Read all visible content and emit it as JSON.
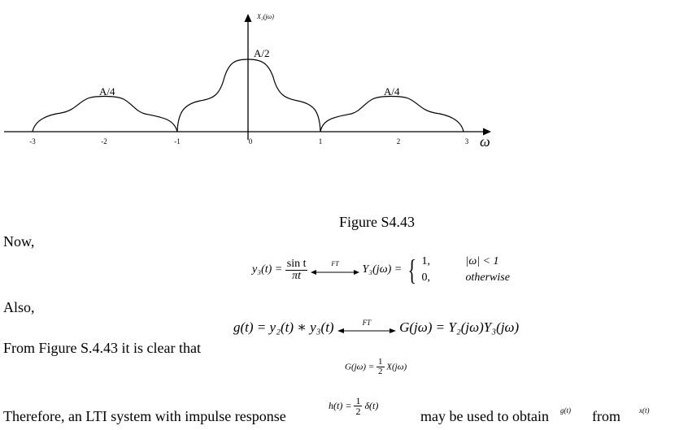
{
  "figure": {
    "y_axis_label": "X₂(jω)",
    "x_axis_symbol": "ω",
    "x_ticks": [
      "-3",
      "-2",
      "-1",
      "0",
      "1",
      "2",
      "3"
    ],
    "peak_labels": {
      "left": "A/4",
      "center": "A/2",
      "right": "A/4"
    },
    "caption": "Figure S4.43"
  },
  "chart_data": {
    "type": "line",
    "x": [
      -3,
      -2,
      -1,
      0,
      1,
      2,
      3
    ],
    "series": [
      {
        "values": [
          0,
          0.25,
          0,
          0.5,
          0,
          0.25,
          0
        ]
      }
    ],
    "xlabel": "ω",
    "ylabel": "X₂(jω)",
    "xlim": [
      -3,
      3
    ],
    "annotations": [
      "A/4",
      "A/2",
      "A/4"
    ]
  },
  "text": {
    "now": "Now,",
    "also": "Also,",
    "from_figure": "From Figure S.4.43 it is clear that",
    "therefore_1": "Therefore, an LTI system with impulse response",
    "therefore_2": "may be used to obtain",
    "from_word": "from"
  },
  "equations": {
    "eq1_lhs": "y₃(t) =",
    "eq1_num": "sin t",
    "eq1_den": "πt",
    "ft": "FT",
    "eq1_mid": "Y₃(jω) =",
    "eq1_case1_val": "1,",
    "eq1_case1_cond": "|ω| < 1",
    "eq1_case2_val": "0,",
    "eq1_case2_cond": "otherwise",
    "eq2_lhs": "g(t) = y₂(t) ∗ y₃(t)",
    "eq2_rhs": "G(jω) = Y₂(jω)Y₃(jω)",
    "eq3_lhs": "G(jω) =",
    "eq3_num": "1",
    "eq3_den": "2",
    "eq3_rhs": "X(jω)",
    "eq4_lhs": "h(t) =",
    "eq4_num": "1",
    "eq4_den": "2",
    "eq4_rhs": "δ(t)",
    "g_t": "g(t)",
    "x_t": "x(t)"
  }
}
